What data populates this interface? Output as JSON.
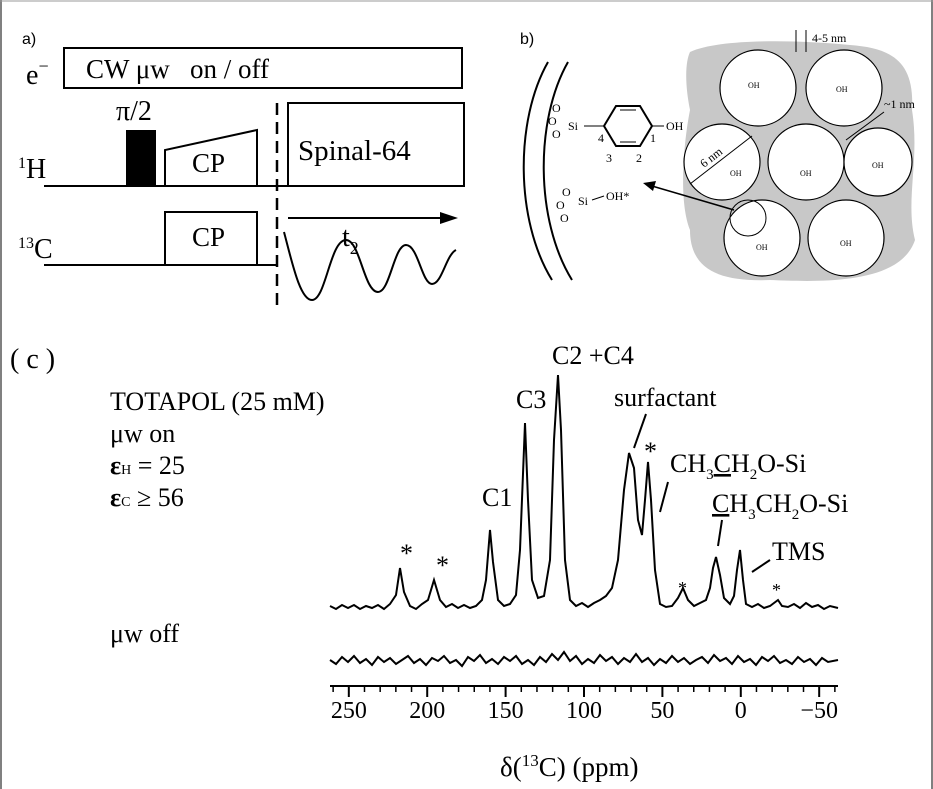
{
  "panel_a": {
    "label": "a)",
    "electron": {
      "text": "e",
      "sup": "−"
    },
    "cw_box": "CW μw   on / off",
    "pulse": "π/2",
    "h_channel": {
      "sup": "1",
      "text": "H"
    },
    "cp_h": "CP",
    "decoupling": "Spinal-64",
    "c_channel": {
      "sup": "13",
      "text": "C"
    },
    "cp_c": "CP",
    "acquisition": {
      "text": "t",
      "sub": "2"
    }
  },
  "panel_b": {
    "label": "b)",
    "oxygen": "O",
    "silicon": "Si",
    "hydroxyl": "OH",
    "positions": [
      "4",
      "1",
      "3",
      "2"
    ],
    "silanol": "OH*",
    "pore_diameter": "6 nm",
    "wall": "4-5 nm",
    "spacing": "~1 nm",
    "pore_oh": "OH"
  },
  "panel_c": {
    "label": "( c )",
    "agent": "TOTAPOL (25 mM)",
    "mw_on": "μw on",
    "eps_h": {
      "symbol": "ε",
      "sub": "H",
      "text": " = 25"
    },
    "eps_c": {
      "symbol": "ε",
      "sub": "C",
      "text": " ≥ 56"
    },
    "mw_off": "μw off",
    "peaks": {
      "c1": "C1",
      "c3": "C3",
      "c2c4": "C2 +C4",
      "surfactant": "surfactant",
      "ethoxy_ch2": [
        "CH",
        "3",
        "C",
        "H",
        "2",
        "O-Si"
      ],
      "ethoxy_ch3": [
        "C",
        "H",
        "3",
        "CH",
        "2",
        "O-Si"
      ],
      "tms": "TMS",
      "sideband": "*"
    },
    "axis": {
      "xlim": [
        262,
        -62
      ],
      "xticks": [
        250,
        200,
        150,
        100,
        50,
        0,
        {
          "value": -50,
          "label": "−50"
        }
      ],
      "minor_xticks": [
        260,
        240,
        230,
        220,
        210,
        190,
        180,
        170,
        160,
        140,
        130,
        120,
        110,
        90,
        80,
        70,
        60,
        40,
        30,
        20,
        10,
        -10,
        -20,
        -30,
        -40,
        -60
      ],
      "label": {
        "text": "δ(",
        "sup": "13",
        "rest": "C) (ppm)"
      }
    }
  }
}
